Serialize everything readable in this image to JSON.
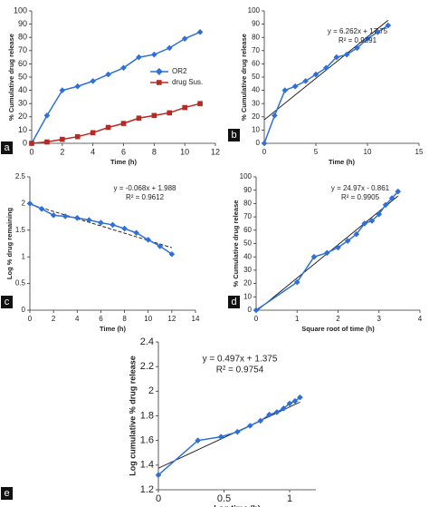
{
  "chart_data": [
    {
      "type": "line",
      "panel_label": "a",
      "xlabel": "Time (h)",
      "ylabel": "% Cumulative drug release",
      "x": [
        0,
        1,
        2,
        3,
        4,
        5,
        6,
        7,
        8,
        9,
        10,
        11
      ],
      "series": [
        {
          "name": "OR2",
          "color": "#2f6fd8",
          "marker": "diamond",
          "values": [
            0,
            21,
            40,
            43,
            47,
            52,
            57,
            65,
            67,
            72,
            79,
            84
          ]
        },
        {
          "name": "drug Sus.",
          "color": "#b52a25",
          "marker": "square",
          "values": [
            0,
            1,
            3,
            5,
            8,
            12,
            15,
            19,
            21,
            23,
            27,
            30
          ]
        }
      ],
      "xlim": [
        0,
        12
      ],
      "xticks": [
        0,
        2,
        4,
        6,
        8,
        10,
        12
      ],
      "ylim": [
        0,
        100
      ],
      "yticks": [
        0,
        10,
        20,
        30,
        40,
        50,
        60,
        70,
        80,
        90,
        100
      ],
      "legend": "right"
    },
    {
      "type": "line",
      "panel_label": "b",
      "xlabel": "Time (h)",
      "ylabel": "% Cumulative drug release",
      "x": [
        0,
        1,
        2,
        3,
        4,
        5,
        6,
        7,
        8,
        9,
        10,
        11,
        12
      ],
      "series": [
        {
          "color": "#2f6fd8",
          "marker": "diamond",
          "values": [
            0,
            21,
            40,
            43,
            47,
            52,
            57,
            65,
            67,
            72,
            79,
            84,
            89
          ]
        }
      ],
      "trendline": {
        "slope": 6.262,
        "intercept": 17.75,
        "style": "solid"
      },
      "annotations": [
        "y = 6.262x + 17.75",
        "R² = 0.9291"
      ],
      "xlim": [
        0,
        15
      ],
      "xticks": [
        0,
        5,
        10,
        15
      ],
      "ylim": [
        0,
        100
      ],
      "yticks": [
        0,
        10,
        20,
        30,
        40,
        50,
        60,
        70,
        80,
        90,
        100
      ]
    },
    {
      "type": "line",
      "panel_label": "c",
      "xlabel": "Time (h)",
      "ylabel": "Log % drug remaining",
      "x": [
        0,
        1,
        2,
        3,
        4,
        5,
        6,
        7,
        8,
        9,
        10,
        11,
        12
      ],
      "series": [
        {
          "color": "#2f6fd8",
          "marker": "diamond",
          "values": [
            2.0,
            1.9,
            1.78,
            1.76,
            1.73,
            1.69,
            1.64,
            1.6,
            1.53,
            1.45,
            1.32,
            1.2,
            1.05
          ]
        }
      ],
      "trendline": {
        "slope": -0.068,
        "intercept": 1.988,
        "style": "dashed"
      },
      "annotations": [
        "y = -0.068x + 1.988",
        "R² = 0.9612"
      ],
      "xlim": [
        0,
        14
      ],
      "xticks": [
        0,
        2,
        4,
        6,
        8,
        10,
        12,
        14
      ],
      "ylim": [
        0,
        2.5
      ],
      "yticks": [
        0,
        0.5,
        1,
        1.5,
        2,
        2.5
      ]
    },
    {
      "type": "line",
      "panel_label": "d",
      "xlabel": "Square root of time (h)",
      "ylabel": "% Cumulative drug release",
      "x": [
        0,
        1,
        1.414,
        1.732,
        2,
        2.236,
        2.449,
        2.646,
        2.828,
        3,
        3.162,
        3.317,
        3.464
      ],
      "series": [
        {
          "color": "#2f6fd8",
          "marker": "diamond",
          "values": [
            0,
            21,
            40,
            43,
            47,
            52,
            57,
            65,
            67,
            72,
            79,
            84,
            89
          ]
        }
      ],
      "trendline": {
        "slope": 24.97,
        "intercept": -0.861,
        "style": "solid"
      },
      "annotations": [
        "y = 24.97x - 0.861",
        "R² = 0.9905"
      ],
      "xlim": [
        0,
        4
      ],
      "xticks": [
        0,
        1,
        2,
        3,
        4
      ],
      "ylim": [
        0,
        100
      ],
      "yticks": [
        0,
        10,
        20,
        30,
        40,
        50,
        60,
        70,
        80,
        90,
        100
      ]
    },
    {
      "type": "line",
      "panel_label": "e",
      "xlabel": "Log time (h)",
      "ylabel": "Log cumulative % drug release",
      "x": [
        0,
        0.301,
        0.477,
        0.602,
        0.699,
        0.778,
        0.845,
        0.903,
        0.954,
        1.0,
        1.041,
        1.079
      ],
      "series": [
        {
          "color": "#2f6fd8",
          "marker": "diamond",
          "values": [
            1.32,
            1.6,
            1.63,
            1.67,
            1.72,
            1.76,
            1.81,
            1.83,
            1.86,
            1.9,
            1.92,
            1.95
          ]
        }
      ],
      "trendline": {
        "slope": 0.497,
        "intercept": 1.375,
        "style": "solid"
      },
      "annotations": [
        "y = 0.497x + 1.375",
        "R² = 0.9754"
      ],
      "xlim": [
        0,
        1.2
      ],
      "xticks": [
        0,
        0.5,
        1
      ],
      "ylim": [
        1.2,
        2.4
      ],
      "yticks": [
        1.2,
        1.4,
        1.6,
        1.8,
        2,
        2.2,
        2.4
      ]
    }
  ]
}
